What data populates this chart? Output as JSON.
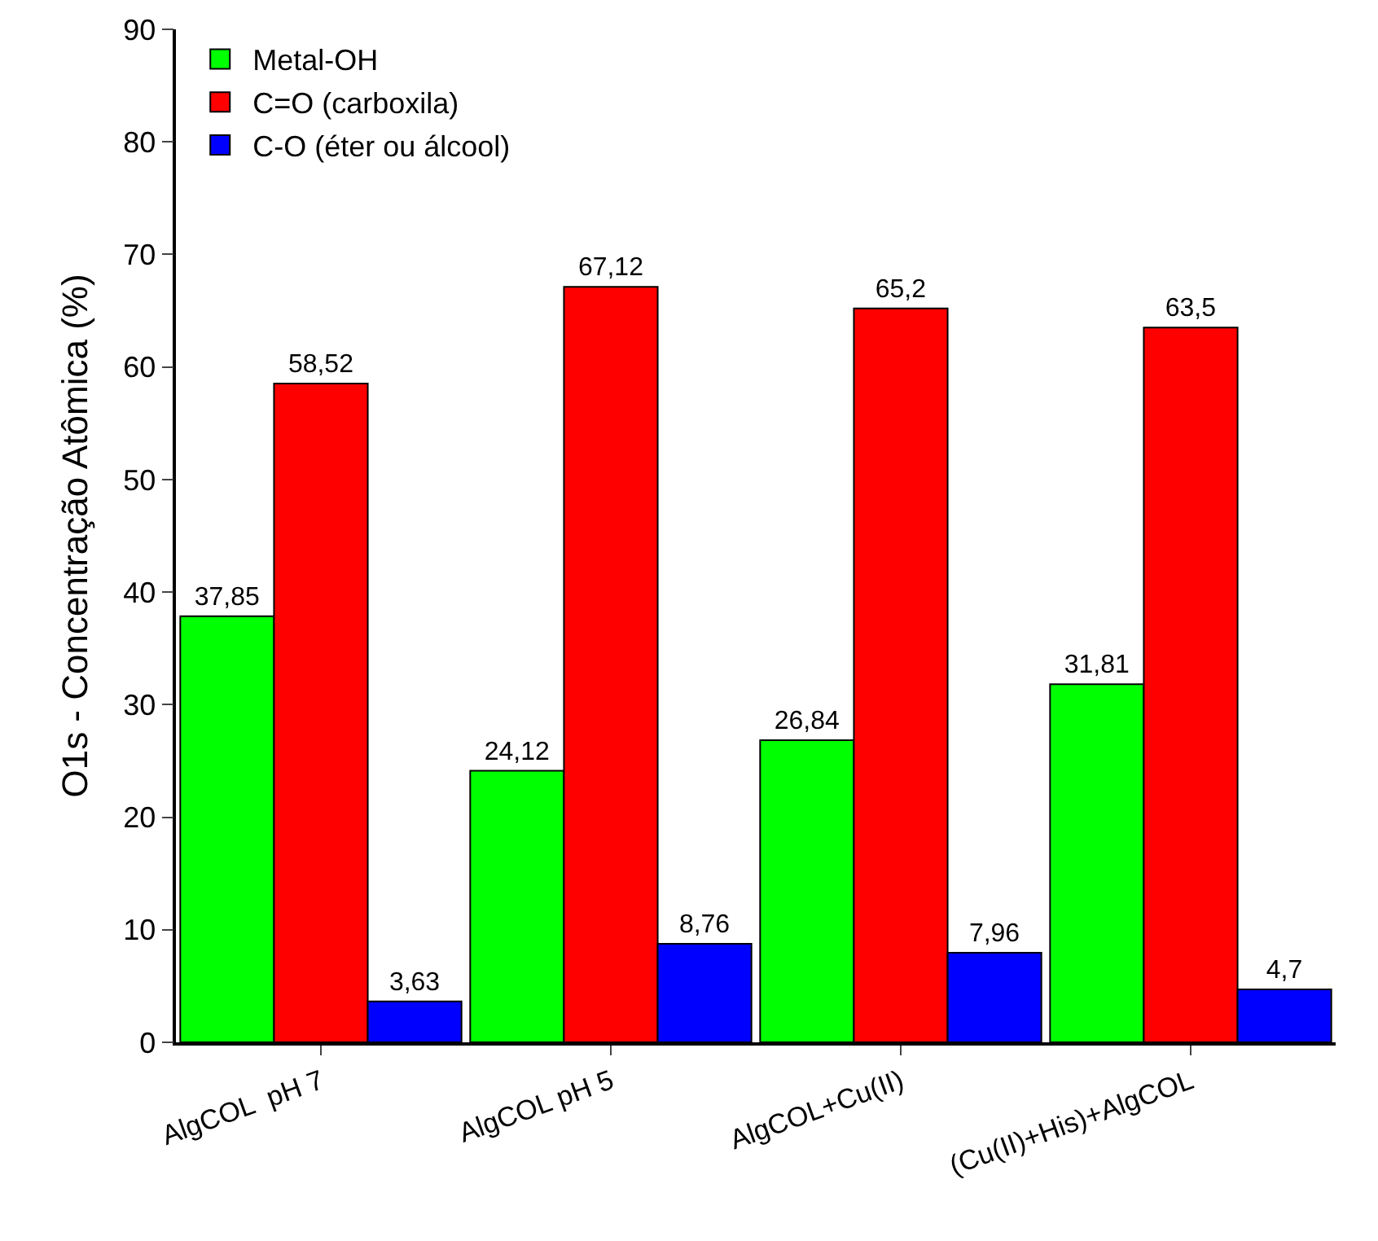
{
  "chart_data": {
    "type": "bar",
    "ylabel": "O1s - Concentração Atômica (%)",
    "categories": [
      "AlgCOL  pH 7",
      "AlgCOL pH 5",
      "AlgCOL+Cu(II)",
      "(Cu(II)+His)+AlgCOL"
    ],
    "series": [
      {
        "name": "Metal-OH",
        "color": "#00ff00",
        "values": [
          37.85,
          24.12,
          26.84,
          31.81
        ],
        "value_labels": [
          "37,85",
          "24,12",
          "26,84",
          "31,81"
        ]
      },
      {
        "name": "C=O (carboxila)",
        "color": "#ff0000",
        "values": [
          58.52,
          67.12,
          65.2,
          63.5
        ],
        "value_labels": [
          "58,52",
          "67,12",
          "65,2",
          "63,5"
        ]
      },
      {
        "name": "C-O (éter ou álcool)",
        "color": "#0000ff",
        "values": [
          3.63,
          8.76,
          7.96,
          4.7
        ],
        "value_labels": [
          "3,63",
          "8,76",
          "7,96",
          "4,7"
        ]
      }
    ],
    "ylim": [
      0,
      90
    ],
    "yticks": [
      0,
      10,
      20,
      30,
      40,
      50,
      60,
      70,
      80,
      90
    ],
    "grid": false,
    "legend": "top left"
  }
}
